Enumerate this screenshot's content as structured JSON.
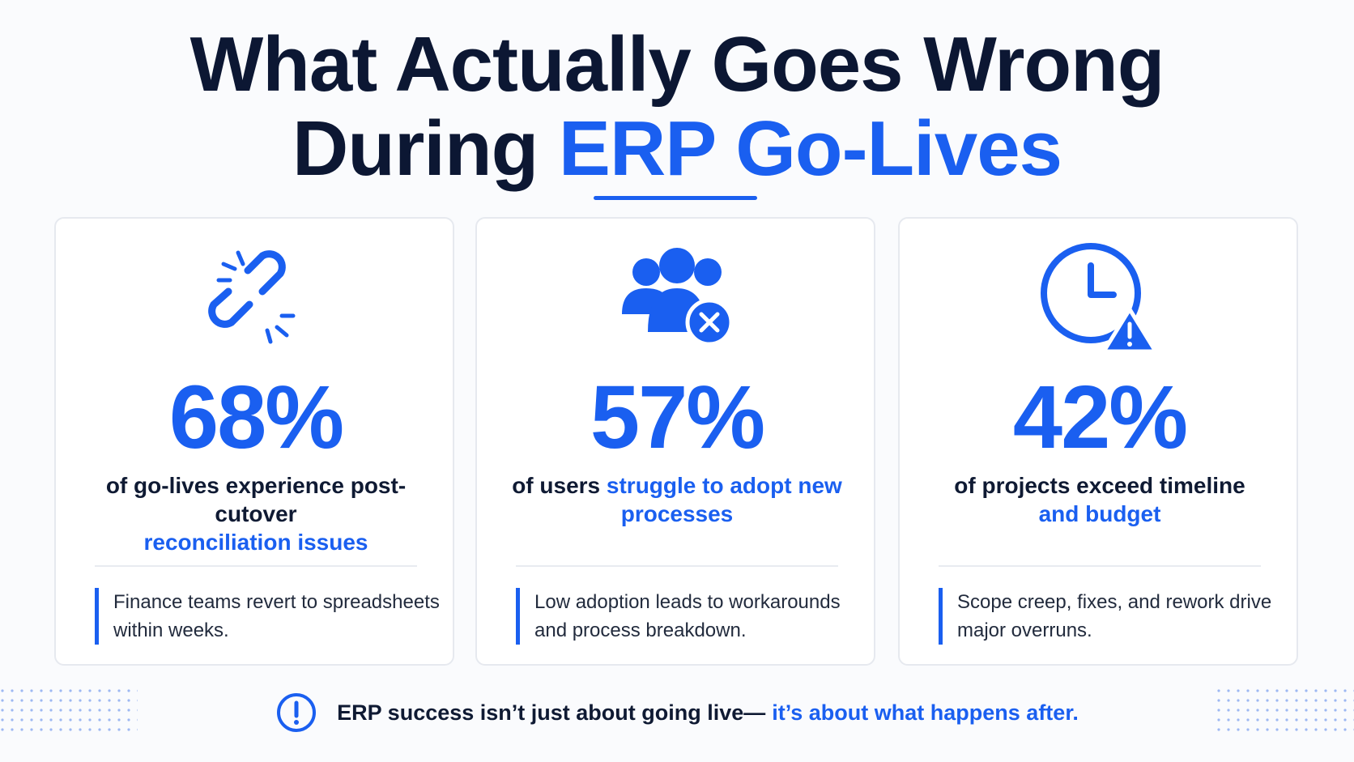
{
  "title": {
    "line1": "What Actually Goes Wrong",
    "line2_plain": "During ",
    "line2_accent": "ERP Go-Lives"
  },
  "cards": [
    {
      "icon": "broken-link-icon",
      "percent": "68%",
      "desc_plain": "of go-lives experience post-cutover",
      "desc_highlight": "reconciliation issues",
      "note": "Finance teams revert to spreadsheets within weeks."
    },
    {
      "icon": "users-x-icon",
      "percent": "57%",
      "desc_plain": "of users",
      "desc_highlight": "struggle to adopt new processes",
      "note": "Low adoption leads to workarounds and process breakdown."
    },
    {
      "icon": "clock-warning-icon",
      "percent": "42%",
      "desc_plain": "of projects exceed timeline",
      "desc_highlight": "and budget",
      "note": "Scope creep, fixes, and rework drive major overruns."
    }
  ],
  "footer": {
    "icon": "exclamation-circle-icon",
    "plain": "ERP success isn’t just about going live—",
    "highlight": "it’s about what happens after."
  },
  "colors": {
    "accent": "#1a5ff0",
    "heading": "#0c1733",
    "card_border": "#e6e9ef"
  }
}
